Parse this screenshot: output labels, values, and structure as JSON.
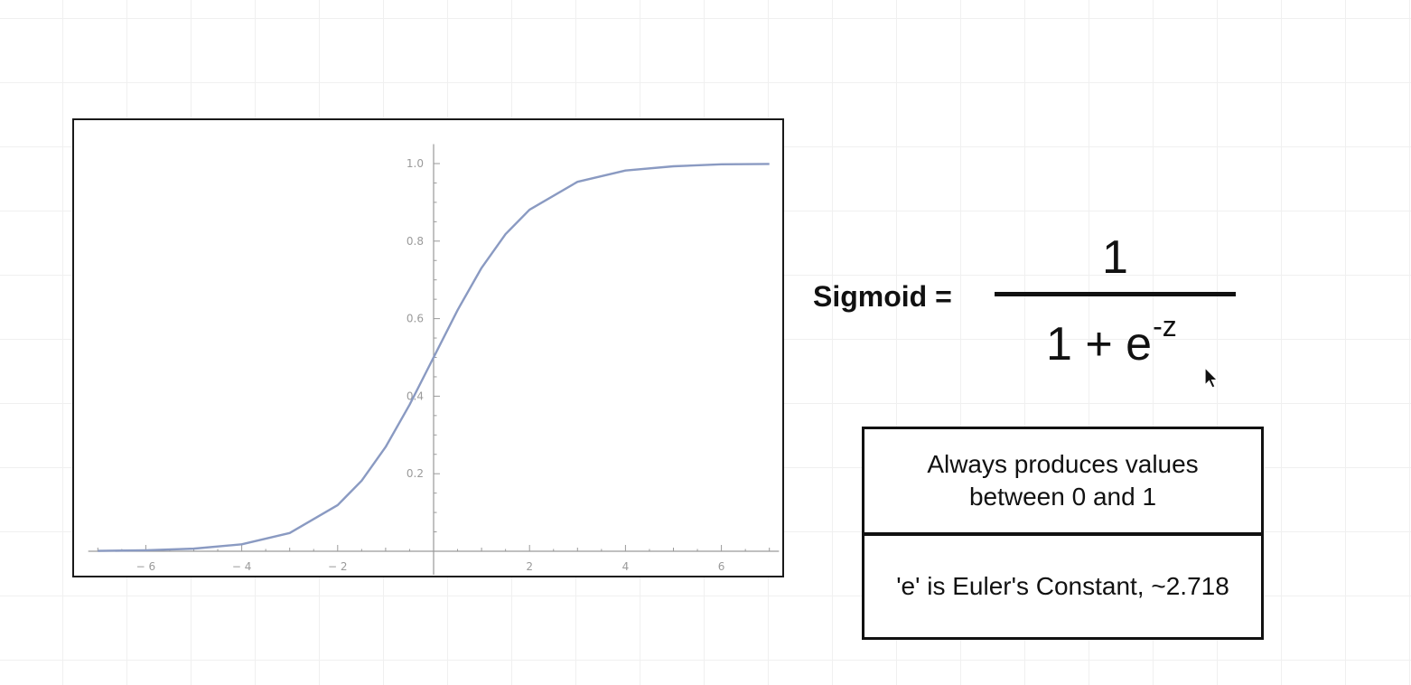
{
  "chart_data": {
    "type": "line",
    "title": "",
    "xlabel": "",
    "ylabel": "",
    "xlim": [
      -7.2,
      7.2
    ],
    "ylim": [
      0,
      1.05
    ],
    "x_ticks": [
      -6,
      -4,
      -2,
      2,
      4,
      6
    ],
    "x_tick_labels": [
      "− 6",
      "− 4",
      "− 2",
      "2",
      "4",
      "6"
    ],
    "y_ticks": [
      0.2,
      0.4,
      0.6,
      0.8,
      1.0
    ],
    "y_tick_labels": [
      "0.2",
      "0.4",
      "0.6",
      "0.8",
      "1.0"
    ],
    "grid": false,
    "series": [
      {
        "color": "#8a9ac2",
        "x": [
          -7,
          -6,
          -5,
          -4,
          -3,
          -2,
          -1.5,
          -1,
          -0.5,
          0,
          0.5,
          1,
          1.5,
          2,
          3,
          4,
          5,
          6,
          7
        ],
        "y": [
          0.0009,
          0.0025,
          0.0067,
          0.018,
          0.047,
          0.119,
          0.182,
          0.269,
          0.378,
          0.5,
          0.622,
          0.731,
          0.818,
          0.881,
          0.953,
          0.982,
          0.993,
          0.998,
          0.999
        ]
      }
    ]
  },
  "formula": {
    "label": "Sigmoid =",
    "numerator": "1",
    "denominator_base": "1 + e",
    "denominator_exponent": "-z"
  },
  "notes": {
    "range_note": "Always produces values between 0 and 1",
    "euler_note": "'e' is Euler's Constant, ~2.718"
  }
}
